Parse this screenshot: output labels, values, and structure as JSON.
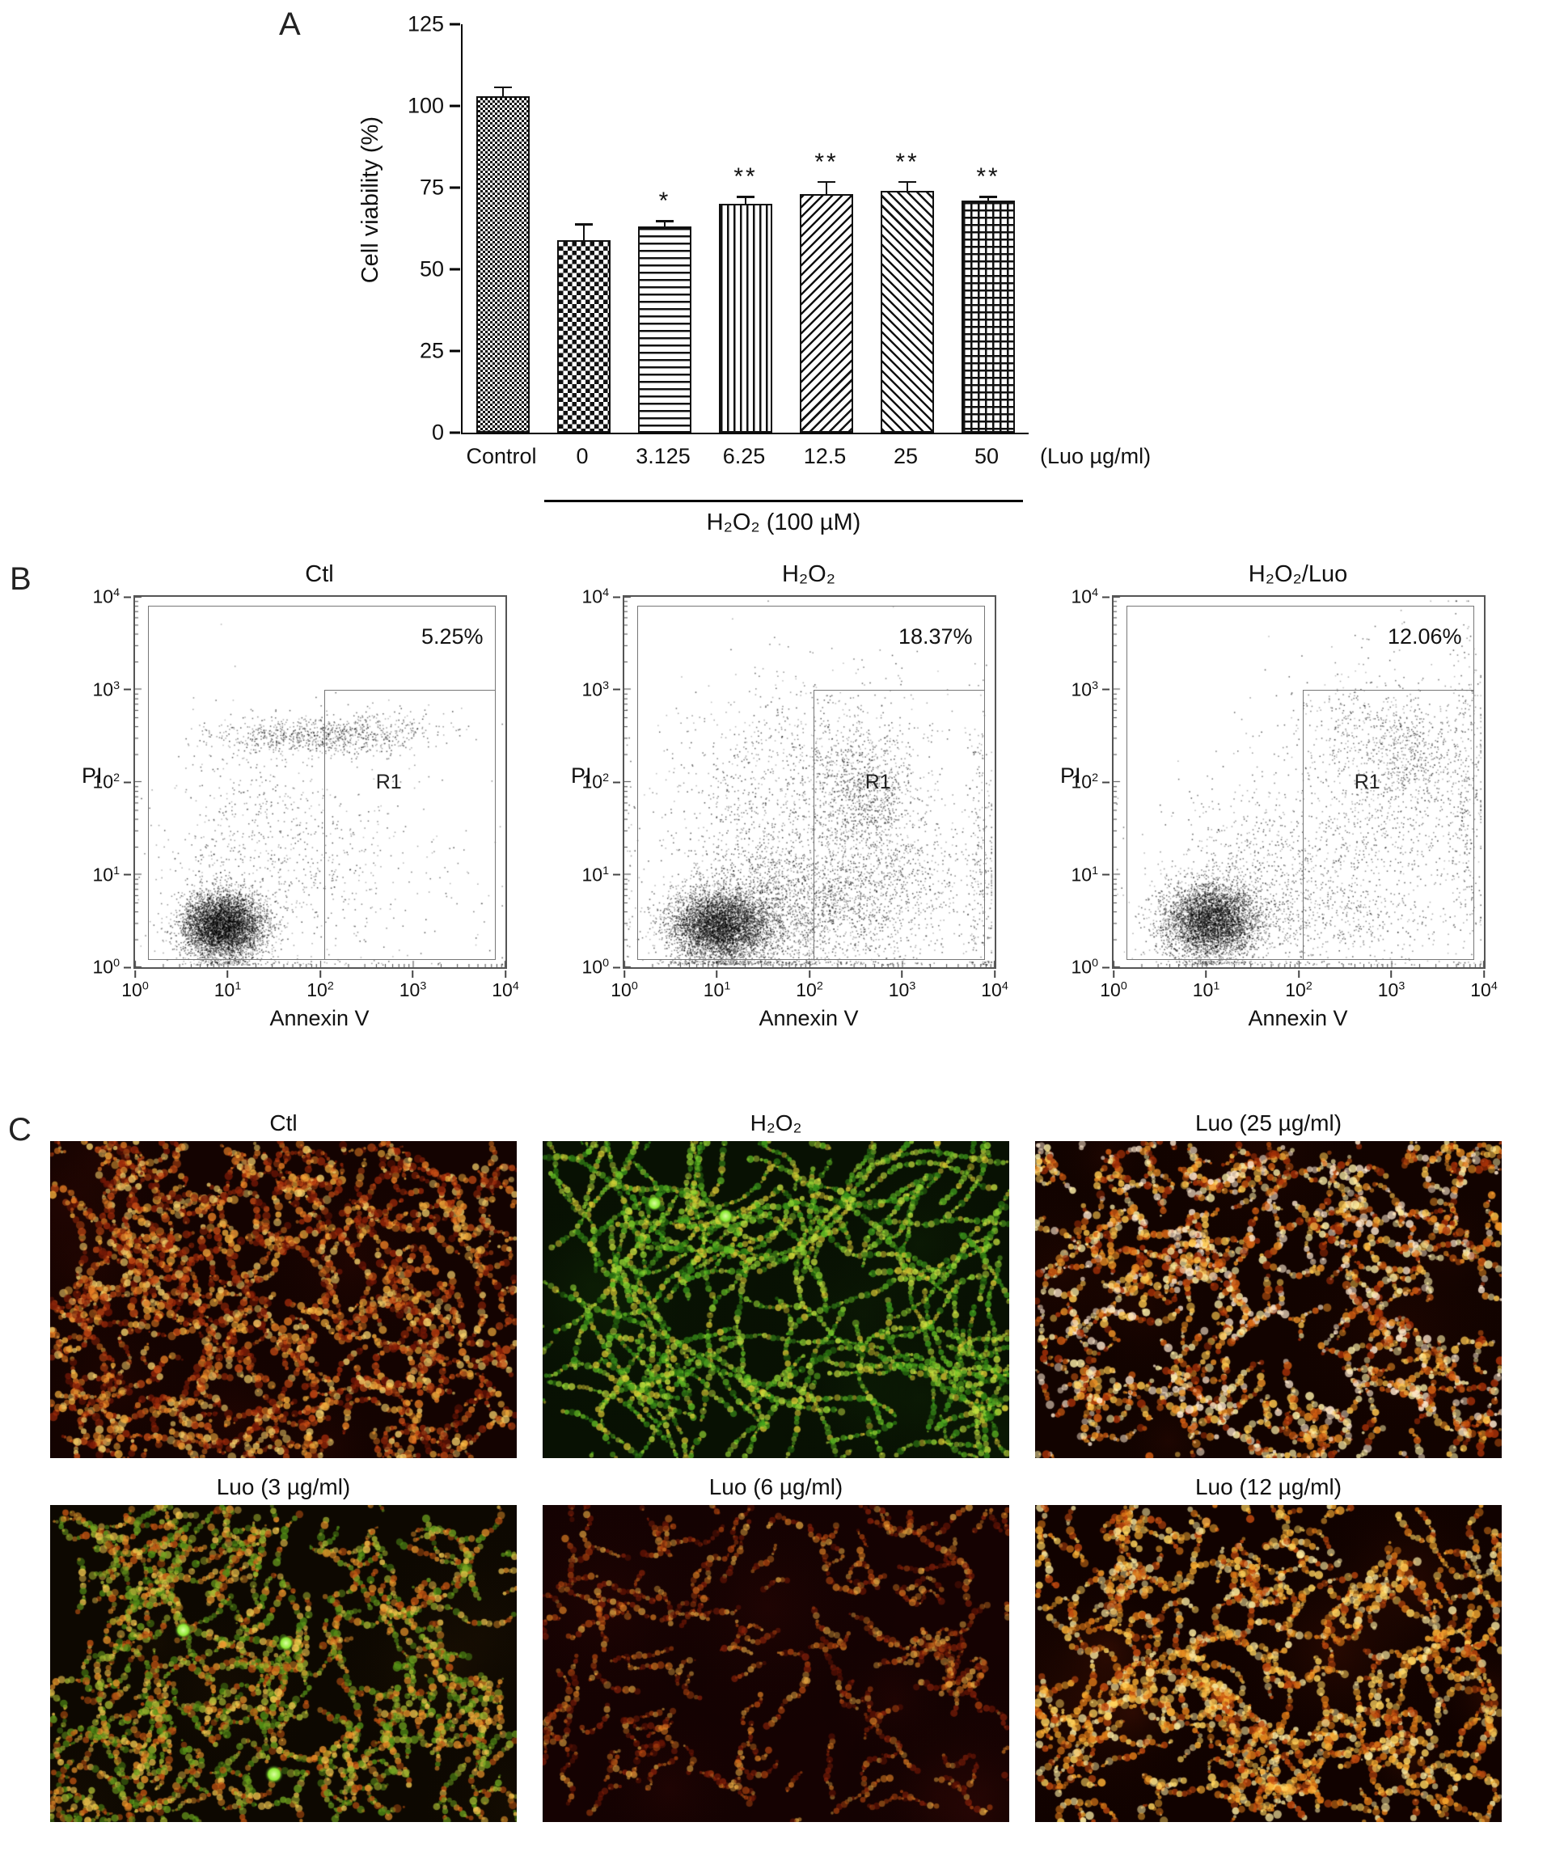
{
  "panels": {
    "a": "A",
    "b": "B",
    "c": "C"
  },
  "chart_data": [
    {
      "type": "bar",
      "panel": "A",
      "title": "",
      "xlabel": "",
      "ylabel": "Cell viability (%)",
      "ylim": [
        0,
        125
      ],
      "yticks": [
        0,
        25,
        50,
        75,
        100,
        125
      ],
      "categories": [
        "Control",
        "0",
        "3.125",
        "6.25",
        "12.5",
        "25",
        "50"
      ],
      "values": [
        103,
        59,
        63,
        70,
        73,
        74,
        71
      ],
      "errors": [
        3,
        5,
        2,
        2.5,
        4,
        3,
        1.5
      ],
      "significance": [
        "",
        "",
        "*",
        "**",
        "**",
        "**",
        "**"
      ],
      "bar_patterns": [
        "checker_fine",
        "checker",
        "hlines",
        "vlines",
        "diag_up",
        "diag_down",
        "grid"
      ],
      "x_unit_label": "(Luo µg/ml)",
      "treatment_label": "H₂O₂ (100 µM)",
      "treatment_span_categories": [
        "0",
        "50"
      ],
      "grid": false,
      "legend": false
    },
    {
      "type": "scatter",
      "panel": "B",
      "xlabel": "Annexin V",
      "ylabel": "PI",
      "log_decades": [
        0,
        4
      ],
      "tick_base": "10",
      "tick_exponents": [
        "0",
        "1",
        "2",
        "3",
        "4"
      ],
      "gate_label": "R1",
      "plots": [
        {
          "title": "Ctl",
          "gate_percent": "5.25%",
          "clusters": [
            [
              0.95,
              0.45,
              0.22,
              0.18,
              5200
            ],
            [
              1.85,
              2.5,
              0.5,
              0.1,
              650
            ],
            [
              2.6,
              2.55,
              0.45,
              0.12,
              250
            ],
            [
              1.4,
              1.1,
              0.6,
              0.5,
              450
            ],
            [
              2.3,
              1.1,
              0.8,
              0.7,
              300
            ],
            [
              1.2,
              1.9,
              0.5,
              0.5,
              200
            ]
          ]
        },
        {
          "title": "H₂O₂",
          "gate_percent": "18.37%",
          "clusters": [
            [
              1.05,
              0.45,
              0.28,
              0.2,
              5000
            ],
            [
              1.8,
              0.65,
              0.6,
              0.4,
              2200
            ],
            [
              2.6,
              1.9,
              0.28,
              0.35,
              900
            ],
            [
              2.1,
              2.3,
              0.7,
              0.5,
              650
            ],
            [
              2.9,
              0.9,
              0.5,
              0.4,
              700
            ],
            [
              1.5,
              1.5,
              0.7,
              0.6,
              600
            ],
            [
              3.85,
              1.2,
              0.08,
              0.8,
              250
            ]
          ]
        },
        {
          "title": "H₂O₂/Luo",
          "gate_percent": "12.06%",
          "clusters": [
            [
              1.05,
              0.5,
              0.26,
              0.2,
              4600
            ],
            [
              1.6,
              1.0,
              0.6,
              0.5,
              800
            ],
            [
              2.9,
              1.7,
              0.5,
              0.8,
              800
            ],
            [
              3.2,
              2.3,
              0.3,
              0.3,
              400
            ],
            [
              2.2,
              0.6,
              0.6,
              0.3,
              450
            ],
            [
              3.8,
              1.8,
              0.12,
              0.9,
              350
            ],
            [
              2.6,
              2.6,
              0.5,
              0.3,
              250
            ]
          ]
        }
      ]
    }
  ],
  "panel_c": {
    "items": [
      {
        "label": "Ctl",
        "bg": "#140301",
        "glow": "rgba(70,12,4,0.22)",
        "palette": [
          "#9e2a0a",
          "#c94d15",
          "#e87f24",
          "#f4ae3c",
          "#761806",
          "#f6d06a"
        ],
        "cells": 260,
        "wiggle": 1.5,
        "seglen": 16,
        "maxr": 4.2,
        "alpha": 0.8,
        "dots": 0,
        "dot_color": "#8ce832"
      },
      {
        "label": "H₂O₂",
        "bg": "#081103",
        "glow": "rgba(20,50,8,0.25)",
        "palette": [
          "#3f9c1c",
          "#63bd24",
          "#95d633",
          "#c6df3f",
          "#2e7a12",
          "#d8c832"
        ],
        "cells": 150,
        "wiggle": 0.55,
        "seglen": 34,
        "maxr": 3.4,
        "alpha": 0.8,
        "dots": 2,
        "dot_color": "#86e82e"
      },
      {
        "label": "Luo (25 µg/ml)",
        "bg": "#120300",
        "glow": "rgba(70,15,4,0.22)",
        "palette": [
          "#d55f12",
          "#ef9326",
          "#ffc84e",
          "#fef0a8",
          "#a93208",
          "#ffe9cf"
        ],
        "cells": 230,
        "wiggle": 1.5,
        "seglen": 15,
        "maxr": 4.2,
        "alpha": 0.85,
        "dots": 0,
        "dot_color": "#8ce832"
      },
      {
        "label": "Luo (3 µg/ml)",
        "bg": "#0d0801",
        "glow": "rgba(50,30,6,0.2)",
        "palette": [
          "#c25512",
          "#e8942a",
          "#a8b832",
          "#6fa31f",
          "#f4c94e",
          "#538f16"
        ],
        "cells": 220,
        "wiggle": 1.3,
        "seglen": 17,
        "maxr": 4.0,
        "alpha": 0.8,
        "dots": 3,
        "dot_color": "#8ce832"
      },
      {
        "label": "Luo (6 µg/ml)",
        "bg": "#150202",
        "glow": "rgba(60,10,6,0.25)",
        "palette": [
          "#8e230a",
          "#bb4a10",
          "#e08124",
          "#6d1605",
          "#eeae44"
        ],
        "cells": 135,
        "wiggle": 1.5,
        "seglen": 13,
        "maxr": 3.6,
        "alpha": 0.7,
        "dots": 0,
        "dot_color": "#8ce832"
      },
      {
        "label": "Luo (12 µg/ml)",
        "bg": "#110200",
        "glow": "rgba(90,25,5,0.3)",
        "palette": [
          "#e07c18",
          "#f9ad32",
          "#ffd45e",
          "#c24a0e",
          "#fae9a0"
        ],
        "cells": 210,
        "wiggle": 1.4,
        "seglen": 16,
        "maxr": 4.2,
        "alpha": 0.85,
        "dots": 0,
        "dot_color": "#8ce832"
      }
    ]
  }
}
